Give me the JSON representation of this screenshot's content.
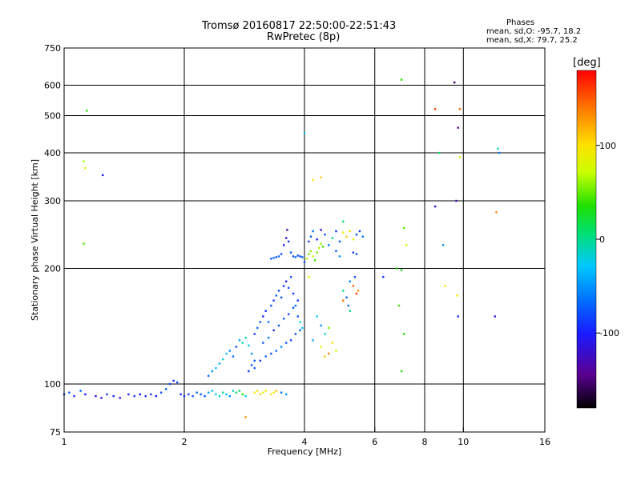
{
  "header": {
    "title_line1": "Tromsø 20160817 22:50:00-22:51:43",
    "title_line2": "RwPretec (8p)"
  },
  "stats": {
    "heading": "Phases",
    "line_o": "mean, sd,O: -95.7, 18.2",
    "line_x": "mean, sd,X:  79.7, 25.2"
  },
  "colorbar": {
    "unit": "[deg]",
    "ticks": [
      {
        "value": 100,
        "label": "100"
      },
      {
        "value": 0,
        "label": "0"
      },
      {
        "value": -100,
        "label": "-100"
      }
    ],
    "range": [
      -180,
      180
    ]
  },
  "chart_data": {
    "type": "scatter",
    "xlabel": "Frequency [MHz]",
    "ylabel": "Stationary phase Virtual Height [km]",
    "xscale": "log",
    "yscale": "log",
    "xlim": [
      1,
      16
    ],
    "ylim": [
      75,
      750
    ],
    "xticks": [
      {
        "value": 1,
        "label": "1"
      },
      {
        "value": 2,
        "label": "2"
      },
      {
        "value": 4,
        "label": "4"
      },
      {
        "value": 6,
        "label": "6"
      },
      {
        "value": 8,
        "label": "8"
      },
      {
        "value": 10,
        "label": "10"
      },
      {
        "value": 16,
        "label": "16"
      }
    ],
    "yticks": [
      {
        "value": 75,
        "label": "75"
      },
      {
        "value": 100,
        "label": "100"
      },
      {
        "value": 200,
        "label": "200"
      },
      {
        "value": 300,
        "label": "300"
      },
      {
        "value": 400,
        "label": "400"
      },
      {
        "value": 500,
        "label": "500"
      },
      {
        "value": 600,
        "label": "600"
      },
      {
        "value": 750,
        "label": "750"
      }
    ],
    "xgrid": [
      2,
      4,
      6,
      8,
      10
    ],
    "ygrid": [
      100,
      200,
      300,
      400,
      500,
      600
    ],
    "points": [
      [
        1.0,
        94,
        -110
      ],
      [
        1.03,
        95,
        -100
      ],
      [
        1.06,
        93,
        -115
      ],
      [
        1.1,
        96,
        -95
      ],
      [
        1.13,
        94,
        -120
      ],
      [
        1.2,
        93,
        -125
      ],
      [
        1.24,
        92,
        -130
      ],
      [
        1.28,
        94,
        -110
      ],
      [
        1.33,
        93,
        -120
      ],
      [
        1.38,
        92,
        -125
      ],
      [
        1.45,
        94,
        -115
      ],
      [
        1.5,
        93,
        -110
      ],
      [
        1.55,
        94,
        -120
      ],
      [
        1.6,
        93,
        -115
      ],
      [
        1.65,
        94,
        -110
      ],
      [
        1.7,
        93,
        -120
      ],
      [
        1.75,
        95,
        -100
      ],
      [
        1.8,
        97,
        -95
      ],
      [
        1.84,
        100,
        -105
      ],
      [
        1.88,
        102,
        -110
      ],
      [
        1.92,
        101,
        -100
      ],
      [
        1.96,
        94,
        -115
      ],
      [
        2.0,
        93,
        -110
      ],
      [
        2.05,
        94,
        -105
      ],
      [
        2.1,
        93,
        -100
      ],
      [
        2.15,
        95,
        -90
      ],
      [
        2.2,
        94,
        -95
      ],
      [
        2.25,
        93,
        -100
      ],
      [
        2.3,
        95,
        -70
      ],
      [
        2.35,
        96,
        -60
      ],
      [
        2.4,
        94,
        -50
      ],
      [
        2.45,
        93,
        -40
      ],
      [
        2.5,
        95,
        -30
      ],
      [
        2.55,
        94,
        -60
      ],
      [
        2.6,
        93,
        -80
      ],
      [
        2.65,
        96,
        -40
      ],
      [
        2.7,
        95,
        -20
      ],
      [
        2.75,
        96,
        -10
      ],
      [
        2.8,
        94,
        20
      ],
      [
        2.85,
        93,
        -50
      ],
      [
        3.0,
        95,
        90
      ],
      [
        3.05,
        96,
        100
      ],
      [
        3.1,
        94,
        110
      ],
      [
        3.15,
        95,
        80
      ],
      [
        3.2,
        96,
        95
      ],
      [
        3.3,
        94,
        100
      ],
      [
        3.35,
        95,
        85
      ],
      [
        3.4,
        96,
        110
      ],
      [
        3.5,
        95,
        -90
      ],
      [
        3.6,
        94,
        -80
      ],
      [
        2.85,
        82,
        130
      ],
      [
        2.3,
        105,
        -90
      ],
      [
        2.35,
        108,
        -80
      ],
      [
        2.4,
        110,
        -60
      ],
      [
        2.45,
        113,
        -70
      ],
      [
        2.5,
        116,
        -50
      ],
      [
        2.55,
        120,
        -60
      ],
      [
        2.6,
        122,
        -80
      ],
      [
        2.65,
        118,
        -90
      ],
      [
        2.7,
        125,
        -100
      ],
      [
        2.75,
        130,
        -70
      ],
      [
        2.8,
        128,
        -40
      ],
      [
        2.85,
        132,
        -30
      ],
      [
        2.9,
        126,
        -60
      ],
      [
        2.95,
        120,
        -80
      ],
      [
        3.0,
        115,
        -100
      ],
      [
        3.0,
        135,
        -110
      ],
      [
        3.05,
        140,
        -90
      ],
      [
        3.1,
        145,
        -100
      ],
      [
        3.15,
        150,
        -120
      ],
      [
        3.2,
        155,
        -110
      ],
      [
        3.25,
        145,
        -90
      ],
      [
        3.3,
        160,
        -100
      ],
      [
        3.35,
        165,
        -110
      ],
      [
        3.4,
        170,
        -95
      ],
      [
        3.45,
        175,
        -105
      ],
      [
        3.5,
        168,
        -100
      ],
      [
        3.55,
        180,
        -110
      ],
      [
        3.6,
        185,
        -120
      ],
      [
        3.65,
        178,
        -95
      ],
      [
        3.7,
        190,
        -100
      ],
      [
        3.75,
        172,
        -110
      ],
      [
        3.8,
        160,
        -90
      ],
      [
        3.85,
        150,
        -100
      ],
      [
        3.9,
        145,
        -40
      ],
      [
        3.95,
        140,
        -60
      ],
      [
        3.1,
        115,
        -110
      ],
      [
        3.2,
        118,
        -95
      ],
      [
        3.3,
        120,
        -100
      ],
      [
        3.4,
        122,
        -90
      ],
      [
        3.5,
        125,
        -80
      ],
      [
        3.6,
        128,
        -100
      ],
      [
        3.7,
        130,
        -110
      ],
      [
        3.8,
        135,
        -105
      ],
      [
        3.9,
        138,
        -95
      ],
      [
        3.0,
        110,
        -100
      ],
      [
        2.9,
        108,
        -110
      ],
      [
        2.95,
        112,
        -95
      ],
      [
        3.15,
        128,
        -100
      ],
      [
        3.25,
        132,
        -90
      ],
      [
        3.35,
        138,
        -110
      ],
      [
        3.45,
        142,
        -100
      ],
      [
        3.55,
        148,
        -95
      ],
      [
        3.65,
        152,
        -105
      ],
      [
        3.75,
        158,
        -100
      ],
      [
        3.85,
        165,
        -110
      ],
      [
        3.3,
        212,
        -100
      ],
      [
        3.35,
        213,
        -90
      ],
      [
        3.4,
        214,
        -105
      ],
      [
        3.45,
        215,
        -95
      ],
      [
        3.5,
        218,
        -100
      ],
      [
        3.55,
        230,
        -120
      ],
      [
        3.6,
        240,
        -130
      ],
      [
        3.62,
        252,
        -140
      ],
      [
        3.65,
        235,
        -110
      ],
      [
        3.7,
        220,
        -100
      ],
      [
        3.75,
        215,
        -105
      ],
      [
        3.8,
        214,
        -90
      ],
      [
        3.85,
        216,
        -100
      ],
      [
        3.9,
        215,
        -110
      ],
      [
        3.95,
        214,
        -95
      ],
      [
        4.0,
        208,
        -100
      ],
      [
        4.05,
        212,
        60
      ],
      [
        4.1,
        218,
        40
      ],
      [
        4.15,
        222,
        50
      ],
      [
        4.2,
        215,
        70
      ],
      [
        4.25,
        210,
        30
      ],
      [
        4.3,
        220,
        45
      ],
      [
        4.35,
        226,
        60
      ],
      [
        4.4,
        232,
        55
      ],
      [
        4.45,
        228,
        35
      ],
      [
        4.1,
        235,
        -110
      ],
      [
        4.15,
        242,
        -100
      ],
      [
        4.2,
        250,
        -90
      ],
      [
        4.3,
        238,
        -120
      ],
      [
        4.5,
        245,
        -100
      ],
      [
        4.6,
        230,
        -90
      ],
      [
        4.7,
        240,
        -20
      ],
      [
        4.8,
        250,
        -110
      ],
      [
        4.9,
        235,
        -100
      ],
      [
        5.0,
        248,
        90
      ],
      [
        5.1,
        242,
        110
      ],
      [
        5.2,
        250,
        100
      ],
      [
        5.3,
        238,
        80
      ],
      [
        5.4,
        245,
        -100
      ],
      [
        5.5,
        250,
        -110
      ],
      [
        5.6,
        242,
        -90
      ],
      [
        5.3,
        220,
        -110
      ],
      [
        5.4,
        218,
        -100
      ],
      [
        4.8,
        222,
        -95
      ],
      [
        4.9,
        215,
        -80
      ],
      [
        5.0,
        265,
        -20
      ],
      [
        4.2,
        340,
        100
      ],
      [
        4.4,
        345,
        110
      ],
      [
        4.1,
        190,
        90
      ],
      [
        4.3,
        150,
        -60
      ],
      [
        4.4,
        142,
        -80
      ],
      [
        4.5,
        135,
        -40
      ],
      [
        4.6,
        140,
        50
      ],
      [
        4.7,
        128,
        100
      ],
      [
        4.8,
        122,
        80
      ],
      [
        4.4,
        125,
        90
      ],
      [
        4.5,
        118,
        110
      ],
      [
        4.2,
        130,
        -70
      ],
      [
        4.6,
        120,
        140
      ],
      [
        5.0,
        175,
        -20
      ],
      [
        5.1,
        168,
        -100
      ],
      [
        5.15,
        160,
        -90
      ],
      [
        5.2,
        185,
        -80
      ],
      [
        5.3,
        180,
        150
      ],
      [
        5.4,
        172,
        160
      ],
      [
        5.35,
        190,
        -100
      ],
      [
        5.45,
        175,
        130
      ],
      [
        5.2,
        155,
        -30
      ],
      [
        5.0,
        165,
        145
      ],
      [
        6.3,
        190,
        -110
      ],
      [
        6.8,
        200,
        20
      ],
      [
        7.0,
        198,
        10
      ],
      [
        6.9,
        160,
        30
      ],
      [
        7.1,
        135,
        15
      ],
      [
        7.0,
        108,
        20
      ],
      [
        7.2,
        230,
        70
      ],
      [
        7.1,
        255,
        40
      ],
      [
        7.0,
        620,
        20
      ],
      [
        1.12,
        380,
        60
      ],
      [
        1.13,
        365,
        70
      ],
      [
        1.12,
        232,
        30
      ],
      [
        1.14,
        515,
        20
      ],
      [
        1.25,
        350,
        -120
      ],
      [
        8.5,
        520,
        160
      ],
      [
        8.5,
        290,
        -130
      ],
      [
        8.7,
        400,
        -10
      ],
      [
        8.9,
        230,
        -80
      ],
      [
        9.0,
        180,
        100
      ],
      [
        9.5,
        610,
        -160
      ],
      [
        9.7,
        465,
        -150
      ],
      [
        9.8,
        520,
        150
      ],
      [
        9.6,
        300,
        -140
      ],
      [
        9.7,
        150,
        -120
      ],
      [
        9.65,
        170,
        100
      ],
      [
        9.8,
        390,
        80
      ],
      [
        12.2,
        410,
        -40
      ],
      [
        12.3,
        400,
        -90
      ],
      [
        12.0,
        150,
        -130
      ],
      [
        12.1,
        280,
        140
      ],
      [
        4.0,
        450,
        -60
      ],
      [
        4.4,
        252,
        -130
      ]
    ]
  }
}
